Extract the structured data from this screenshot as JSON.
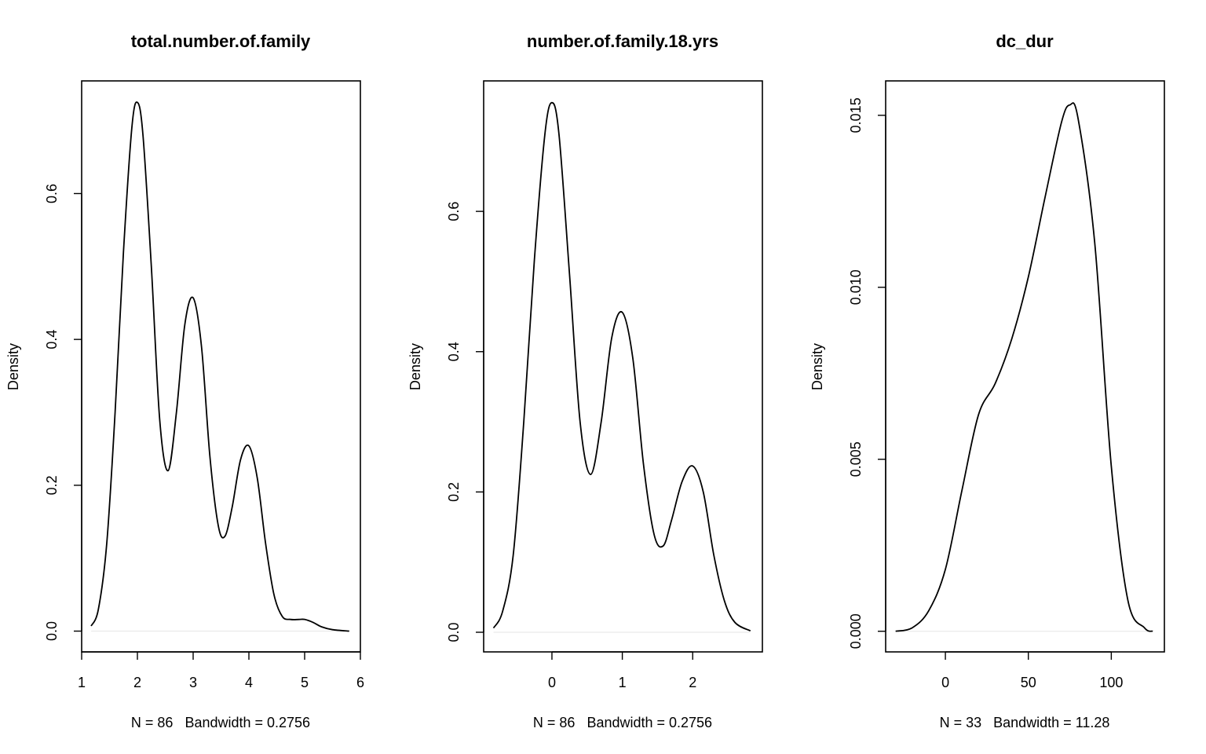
{
  "chart_data": [
    {
      "type": "line",
      "title": "total.number.of.family",
      "xlabel": "N = 86   Bandwidth = 0.2756",
      "ylabel": "Density",
      "xlim": [
        1.0,
        6.0
      ],
      "ylim": [
        -0.0285,
        0.7545
      ],
      "xticks": [
        1,
        2,
        3,
        4,
        5,
        6
      ],
      "xtick_labels": [
        "1",
        "2",
        "3",
        "4",
        "5",
        "6"
      ],
      "yticks": [
        0.0,
        0.2,
        0.4,
        0.6
      ],
      "ytick_labels": [
        "0.0",
        "0.2",
        "0.4",
        "0.6"
      ],
      "grid": false,
      "series": [
        {
          "x": [
            1.17,
            1.3,
            1.45,
            1.6,
            1.75,
            1.9,
            2.0,
            2.1,
            2.25,
            2.4,
            2.55,
            2.7,
            2.85,
            3.0,
            3.15,
            3.3,
            3.45,
            3.57,
            3.7,
            3.85,
            4.0,
            4.15,
            4.3,
            4.45,
            4.6,
            4.75,
            4.9,
            5.0,
            5.15,
            5.3,
            5.5,
            5.8
          ],
          "y": [
            0.007,
            0.03,
            0.12,
            0.3,
            0.52,
            0.69,
            0.725,
            0.68,
            0.5,
            0.29,
            0.22,
            0.3,
            0.42,
            0.457,
            0.39,
            0.24,
            0.145,
            0.13,
            0.17,
            0.235,
            0.254,
            0.21,
            0.12,
            0.05,
            0.02,
            0.016,
            0.016,
            0.016,
            0.012,
            0.006,
            0.002,
            0.0
          ]
        }
      ]
    },
    {
      "type": "line",
      "title": "number.of.family.18.yrs",
      "xlabel": "N = 86   Bandwidth = 0.2756",
      "ylabel": "Density",
      "xlim": [
        -0.97,
        2.99
      ],
      "ylim": [
        -0.028,
        0.786
      ],
      "xticks": [
        0,
        1,
        2
      ],
      "xtick_labels": [
        "0",
        "1",
        "2"
      ],
      "yticks": [
        0.0,
        0.2,
        0.4,
        0.6
      ],
      "ytick_labels": [
        "0.0",
        "0.2",
        "0.4",
        "0.6"
      ],
      "grid": false,
      "series": [
        {
          "x": [
            -0.83,
            -0.7,
            -0.55,
            -0.4,
            -0.25,
            -0.1,
            0.0,
            0.1,
            0.25,
            0.4,
            0.55,
            0.7,
            0.85,
            1.0,
            1.15,
            1.3,
            1.45,
            1.58,
            1.7,
            1.85,
            2.0,
            2.15,
            2.3,
            2.45,
            2.6,
            2.82
          ],
          "y": [
            0.006,
            0.03,
            0.11,
            0.3,
            0.53,
            0.71,
            0.755,
            0.71,
            0.51,
            0.3,
            0.225,
            0.3,
            0.42,
            0.456,
            0.39,
            0.24,
            0.14,
            0.123,
            0.16,
            0.215,
            0.237,
            0.2,
            0.11,
            0.045,
            0.014,
            0.002
          ]
        }
      ]
    },
    {
      "type": "line",
      "title": "dc_dur",
      "xlabel": "N = 33   Bandwidth = 11.28",
      "ylabel": "Density",
      "xlim": [
        -36.0,
        132.0
      ],
      "ylim": [
        -0.0006,
        0.016
      ],
      "xticks": [
        0,
        50,
        100
      ],
      "xtick_labels": [
        "0",
        "50",
        "100"
      ],
      "yticks": [
        0.0,
        0.005,
        0.01,
        0.015
      ],
      "ytick_labels": [
        "0.000",
        "0.005",
        "0.010",
        "0.015"
      ],
      "grid": false,
      "series": [
        {
          "x": [
            -30,
            -20,
            -10,
            0,
            10,
            20,
            30,
            40,
            50,
            60,
            70,
            75,
            80,
            90,
            100,
            110,
            120,
            125
          ],
          "y": [
            0.0,
            0.0001,
            0.0006,
            0.0018,
            0.0041,
            0.0063,
            0.0072,
            0.0085,
            0.0103,
            0.0126,
            0.0148,
            0.0153,
            0.0149,
            0.0113,
            0.0048,
            0.0009,
            0.0001,
            0.0
          ]
        }
      ]
    }
  ]
}
